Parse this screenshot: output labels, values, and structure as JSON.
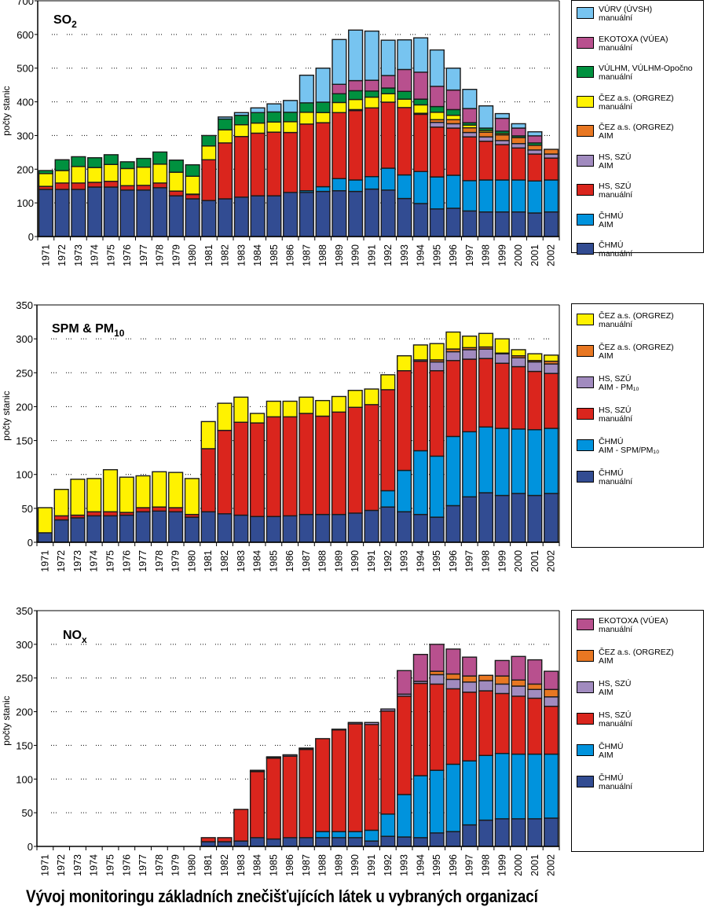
{
  "page_title": "Vývoj monitoringu základních znečišťujících látek u vybraných organizací",
  "series_colors": {
    "vurv_man": "#77C4F0",
    "ekotoxa_man": "#B8508E",
    "vulhm_man": "#00913F",
    "cez_man": "#FFF200",
    "cez_aim": "#E87722",
    "hs_aim": "#A18BBF",
    "hs_man": "#DA251D",
    "chmu_aim": "#0093DD",
    "chmu_man": "#324C92"
  },
  "chart_data": [
    {
      "type": "bar",
      "stacked": true,
      "id": "so2",
      "title": "SO",
      "title_sub": "2",
      "xlabel": "",
      "ylabel": "počty stanic",
      "ylim": [
        0,
        700
      ],
      "yticks": [
        0,
        100,
        200,
        300,
        400,
        500,
        600,
        700
      ],
      "grid": "dotted-horizontal",
      "legend_position": "right",
      "categories": [
        "1971",
        "1972",
        "1973",
        "1974",
        "1975",
        "1976",
        "1977",
        "1978",
        "1979",
        "1980",
        "1981",
        "1982",
        "1983",
        "1984",
        "1985",
        "1986",
        "1987",
        "1988",
        "1989",
        "1990",
        "1991",
        "1992",
        "1993",
        "1994",
        "1995",
        "1996",
        "1997",
        "1998",
        "1999",
        "2000",
        "2001",
        "2002"
      ],
      "legend": [
        {
          "key": "vurv_man",
          "line1": "VÚRV (ÚVSH)",
          "line2": "manuální"
        },
        {
          "key": "ekotoxa_man",
          "line1": "EKOTOXA (VÚEA)",
          "line2": "manuální"
        },
        {
          "key": "vulhm_man",
          "line1": "VÚLHM, VÚLHM-Opočno",
          "line2": "manuální"
        },
        {
          "key": "cez_man",
          "line1": "ČEZ a.s. (ORGREZ)",
          "line2": "manuální"
        },
        {
          "key": "cez_aim",
          "line1": "ČEZ a.s. (ORGREZ)",
          "line2": "AIM"
        },
        {
          "key": "hs_aim",
          "line1": "HS, SZÚ",
          "line2": "AIM"
        },
        {
          "key": "hs_man",
          "line1": "HS, SZÚ",
          "line2": "manuální"
        },
        {
          "key": "chmu_aim",
          "line1": "ČHMÚ",
          "line2": "AIM"
        },
        {
          "key": "chmu_man",
          "line1": "ČHMÚ",
          "line2": "manuální"
        }
      ],
      "series": [
        {
          "key": "chmu_man",
          "name": "ČHMÚ manuální",
          "values": [
            140,
            140,
            140,
            147,
            147,
            138,
            138,
            145,
            121,
            112,
            107,
            112,
            117,
            121,
            121,
            131,
            131,
            134,
            136,
            134,
            141,
            138,
            113,
            98,
            82,
            84,
            76,
            73,
            73,
            73,
            70,
            73
          ]
        },
        {
          "key": "chmu_aim",
          "name": "ČHMÚ AIM",
          "values": [
            0,
            0,
            0,
            0,
            0,
            0,
            0,
            0,
            0,
            0,
            0,
            0,
            0,
            0,
            0,
            0,
            5,
            14,
            36,
            34,
            37,
            65,
            70,
            95,
            95,
            98,
            90,
            95,
            95,
            95,
            95,
            95
          ]
        },
        {
          "key": "hs_man",
          "name": "HS, SZÚ manuální",
          "values": [
            9,
            19,
            19,
            14,
            17,
            13,
            14,
            14,
            14,
            13,
            121,
            166,
            180,
            186,
            189,
            178,
            198,
            190,
            196,
            206,
            204,
            196,
            200,
            170,
            148,
            140,
            130,
            115,
            105,
            95,
            80,
            65
          ]
        },
        {
          "key": "hs_aim",
          "name": "HS, SZÚ AIM",
          "values": [
            0,
            0,
            0,
            0,
            0,
            0,
            0,
            0,
            0,
            1,
            0,
            0,
            0,
            0,
            0,
            0,
            0,
            0,
            0,
            3,
            0,
            0,
            0,
            3,
            14,
            13,
            13,
            13,
            12,
            13,
            12,
            12
          ]
        },
        {
          "key": "cez_aim",
          "name": "ČEZ a.s. (ORGREZ) AIM",
          "values": [
            0,
            0,
            0,
            0,
            0,
            0,
            0,
            0,
            0,
            0,
            0,
            0,
            0,
            0,
            0,
            0,
            0,
            0,
            0,
            0,
            0,
            0,
            0,
            0,
            8,
            12,
            14,
            14,
            17,
            18,
            14,
            14
          ]
        },
        {
          "key": "cez_man",
          "name": "ČEZ a.s. (ORGREZ) manuální",
          "values": [
            38,
            37,
            49,
            44,
            50,
            51,
            54,
            56,
            56,
            53,
            41,
            39,
            35,
            30,
            30,
            32,
            35,
            30,
            30,
            30,
            32,
            25,
            25,
            25,
            22,
            13,
            8,
            5,
            4,
            0,
            0,
            0
          ]
        },
        {
          "key": "vulhm_man",
          "name": "VÚLHM, VÚLHM-Opočno manuální",
          "values": [
            9,
            32,
            29,
            29,
            29,
            20,
            26,
            36,
            36,
            34,
            31,
            32,
            28,
            31,
            30,
            28,
            28,
            31,
            26,
            26,
            18,
            17,
            23,
            17,
            17,
            17,
            7,
            7,
            7,
            5,
            7,
            0
          ]
        },
        {
          "key": "ekotoxa_man",
          "name": "EKOTOXA (VÚEA) manuální",
          "values": [
            0,
            0,
            0,
            0,
            0,
            0,
            0,
            0,
            0,
            0,
            0,
            0,
            0,
            0,
            0,
            0,
            0,
            0,
            28,
            30,
            32,
            37,
            65,
            80,
            60,
            58,
            42,
            0,
            38,
            23,
            21,
            0
          ]
        },
        {
          "key": "vurv_man",
          "name": "VÚRV (ÚVSH) manuální",
          "values": [
            0,
            0,
            0,
            0,
            0,
            0,
            0,
            0,
            0,
            0,
            0,
            6,
            8,
            14,
            24,
            35,
            82,
            101,
            133,
            150,
            146,
            105,
            88,
            102,
            108,
            65,
            57,
            66,
            14,
            13,
            12,
            0
          ]
        }
      ]
    },
    {
      "type": "bar",
      "stacked": true,
      "id": "spm",
      "title": "SPM & PM",
      "title_sub": "10",
      "xlabel": "",
      "ylabel": "počty stanic",
      "ylim": [
        0,
        350
      ],
      "yticks": [
        0,
        50,
        100,
        150,
        200,
        250,
        300,
        350
      ],
      "grid": "dotted-horizontal",
      "legend_position": "right",
      "categories": [
        "1971",
        "1972",
        "1973",
        "1974",
        "1975",
        "1976",
        "1977",
        "1978",
        "1979",
        "1980",
        "1981",
        "1982",
        "1983",
        "1984",
        "1985",
        "1986",
        "1987",
        "1988",
        "1989",
        "1990",
        "1991",
        "1992",
        "1993",
        "1994",
        "1995",
        "1996",
        "1997",
        "1998",
        "1999",
        "2000",
        "2001",
        "2002"
      ],
      "legend": [
        {
          "key": "cez_man",
          "line1": "ČEZ a.s. (ORGREZ)",
          "line2": "manuální"
        },
        {
          "key": "cez_aim",
          "line1": "ČEZ a.s. (ORGREZ)",
          "line2": "AIM"
        },
        {
          "key": "hs_aim",
          "line1": "HS, SZÚ",
          "line2": "AIM - PM₁₀"
        },
        {
          "key": "hs_man",
          "line1": "HS, SZÚ",
          "line2": "manuální"
        },
        {
          "key": "chmu_aim",
          "line1": "ČHMÚ",
          "line2": "AIM - SPM/PM₁₀"
        },
        {
          "key": "chmu_man",
          "line1": "ČHMÚ",
          "line2": "manuální"
        }
      ],
      "series": [
        {
          "key": "chmu_man",
          "name": "ČHMÚ manuální",
          "values": [
            14,
            33,
            36,
            39,
            39,
            40,
            45,
            46,
            45,
            37,
            45,
            42,
            40,
            38,
            38,
            39,
            41,
            41,
            41,
            43,
            47,
            52,
            45,
            41,
            37,
            54,
            67,
            73,
            69,
            72,
            69,
            72
          ]
        },
        {
          "key": "chmu_aim",
          "name": "ČHMÚ AIM - SPM/PM10",
          "values": [
            0,
            0,
            0,
            0,
            0,
            0,
            0,
            0,
            0,
            0,
            0,
            0,
            0,
            0,
            0,
            0,
            0,
            0,
            0,
            0,
            0,
            24,
            61,
            94,
            90,
            102,
            96,
            97,
            99,
            95,
            97,
            96
          ]
        },
        {
          "key": "hs_man",
          "name": "HS, SZÚ manuální",
          "values": [
            0,
            6,
            4,
            6,
            6,
            4,
            6,
            6,
            6,
            4,
            93,
            123,
            137,
            138,
            147,
            146,
            149,
            145,
            151,
            156,
            156,
            149,
            147,
            132,
            126,
            112,
            107,
            101,
            96,
            92,
            86,
            81
          ]
        },
        {
          "key": "hs_aim",
          "name": "HS, SZÚ AIM - PM10",
          "values": [
            0,
            0,
            0,
            0,
            0,
            0,
            0,
            0,
            0,
            0,
            0,
            0,
            0,
            0,
            0,
            0,
            0,
            0,
            0,
            0,
            0,
            0,
            0,
            2,
            13,
            13,
            14,
            14,
            14,
            13,
            14,
            14
          ]
        },
        {
          "key": "cez_aim",
          "name": "ČEZ a.s. (ORGREZ) AIM",
          "values": [
            0,
            0,
            0,
            0,
            0,
            0,
            0,
            0,
            0,
            0,
            0,
            0,
            0,
            0,
            0,
            0,
            0,
            0,
            0,
            0,
            0,
            0,
            0,
            0,
            3,
            4,
            3,
            3,
            1,
            3,
            2,
            4
          ]
        },
        {
          "key": "cez_man",
          "name": "ČEZ a.s. (ORGREZ) manuální",
          "values": [
            37,
            39,
            53,
            49,
            62,
            52,
            47,
            52,
            52,
            53,
            40,
            40,
            37,
            14,
            23,
            23,
            24,
            23,
            23,
            25,
            23,
            22,
            22,
            22,
            24,
            25,
            17,
            20,
            21,
            9,
            10,
            9
          ]
        }
      ]
    },
    {
      "type": "bar",
      "stacked": true,
      "id": "nox",
      "title": "NO",
      "title_sub": "x",
      "xlabel": "",
      "ylabel": "počty stanic",
      "ylim": [
        0,
        350
      ],
      "yticks": [
        0,
        50,
        100,
        150,
        200,
        250,
        300,
        350
      ],
      "grid": "dotted-horizontal",
      "legend_position": "right",
      "categories": [
        "1971",
        "1972",
        "1973",
        "1974",
        "1975",
        "1976",
        "1977",
        "1978",
        "1979",
        "1980",
        "1981",
        "1982",
        "1983",
        "1984",
        "1985",
        "1986",
        "1987",
        "1988",
        "1989",
        "1990",
        "1991",
        "1992",
        "1993",
        "1994",
        "1995",
        "1996",
        "1997",
        "1998",
        "1999",
        "2000",
        "2001",
        "2002"
      ],
      "legend": [
        {
          "key": "ekotoxa_man",
          "line1": "EKOTOXA (VÚEA)",
          "line2": "manuální"
        },
        {
          "key": "cez_aim",
          "line1": "ČEZ a.s. (ORGREZ)",
          "line2": "AIM"
        },
        {
          "key": "hs_aim",
          "line1": "HS, SZÚ",
          "line2": "AIM"
        },
        {
          "key": "hs_man",
          "line1": "HS, SZÚ",
          "line2": "manuální"
        },
        {
          "key": "chmu_aim",
          "line1": "ČHMÚ",
          "line2": "AIM"
        },
        {
          "key": "chmu_man",
          "line1": "ČHMÚ",
          "line2": "manuální"
        }
      ],
      "series": [
        {
          "key": "chmu_man",
          "name": "ČHMÚ manuální",
          "values": [
            0,
            0,
            0,
            0,
            0,
            0,
            0,
            0,
            0,
            0,
            7,
            7,
            8,
            13,
            11,
            13,
            13,
            13,
            13,
            13,
            8,
            15,
            14,
            13,
            20,
            22,
            32,
            39,
            41,
            41,
            41,
            42
          ]
        },
        {
          "key": "chmu_aim",
          "name": "ČHMÚ AIM",
          "values": [
            0,
            0,
            0,
            0,
            0,
            0,
            0,
            0,
            0,
            0,
            0,
            0,
            0,
            0,
            0,
            0,
            0,
            9,
            9,
            9,
            16,
            33,
            63,
            92,
            93,
            100,
            95,
            96,
            97,
            96,
            96,
            95
          ]
        },
        {
          "key": "hs_man",
          "name": "HS, SZÚ manuální",
          "values": [
            0,
            0,
            0,
            0,
            0,
            0,
            0,
            0,
            0,
            0,
            6,
            6,
            47,
            98,
            120,
            121,
            131,
            138,
            151,
            160,
            157,
            153,
            146,
            137,
            128,
            112,
            102,
            96,
            89,
            86,
            83,
            71
          ]
        },
        {
          "key": "hs_aim",
          "name": "HS, SZÚ AIM",
          "values": [
            0,
            0,
            0,
            0,
            0,
            0,
            0,
            0,
            0,
            0,
            0,
            0,
            0,
            1,
            1,
            2,
            1,
            0,
            1,
            2,
            3,
            3,
            3,
            3,
            14,
            14,
            15,
            15,
            14,
            15,
            13,
            14
          ]
        },
        {
          "key": "cez_aim",
          "name": "ČEZ a.s. (ORGREZ) AIM",
          "values": [
            0,
            0,
            0,
            0,
            0,
            0,
            0,
            0,
            0,
            0,
            0,
            0,
            0,
            0,
            0,
            0,
            0,
            0,
            0,
            0,
            0,
            0,
            0,
            0,
            5,
            8,
            9,
            8,
            12,
            9,
            8,
            11
          ]
        },
        {
          "key": "ekotoxa_man",
          "name": "EKOTOXA (VÚEA) manuální",
          "values": [
            0,
            0,
            0,
            0,
            0,
            0,
            0,
            0,
            0,
            0,
            0,
            0,
            0,
            1,
            1,
            0,
            1,
            0,
            0,
            0,
            0,
            0,
            35,
            40,
            40,
            37,
            28,
            0,
            23,
            35,
            36,
            27
          ]
        }
      ]
    }
  ]
}
